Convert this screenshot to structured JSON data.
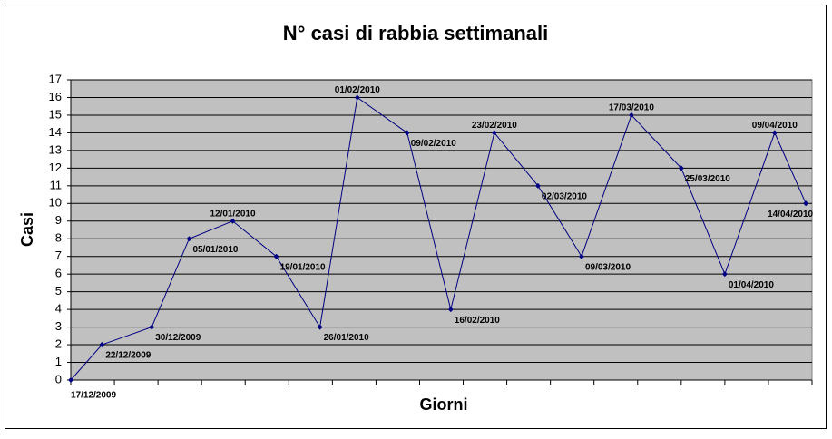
{
  "chart_data": {
    "type": "line",
    "title": "N° casi di rabbia settimanali",
    "x_label": "Giorni",
    "y_label": "Casi",
    "x": [
      "17/12/2009",
      "22/12/2009",
      "30/12/2009",
      "05/01/2010",
      "12/01/2010",
      "19/01/2010",
      "26/01/2010",
      "01/02/2010",
      "09/02/2010",
      "16/02/2010",
      "23/02/2010",
      "02/03/2010",
      "09/03/2010",
      "17/03/2010",
      "25/03/2010",
      "01/04/2010",
      "09/04/2010",
      "14/04/2010"
    ],
    "series": [
      {
        "name": "Casi",
        "color": "#000080",
        "values": [
          0,
          2,
          3,
          8,
          9,
          7,
          3,
          16,
          14,
          4,
          14,
          11,
          7,
          15,
          12,
          6,
          14,
          10
        ]
      }
    ],
    "xlim": [
      "17/12/2009",
      "15/04/2010"
    ],
    "xticks": [
      "17/12/2009"
    ],
    "xminor": [
      "24/12/2009",
      "31/12/2009",
      "07/01/2010",
      "14/01/2010",
      "21/01/2010",
      "28/01/2010",
      "04/02/2010",
      "11/02/2010",
      "18/02/2010",
      "25/02/2010",
      "04/03/2010",
      "11/03/2010",
      "18/03/2010",
      "25/03/2010",
      "01/04/2010",
      "08/04/2010",
      "15/04/2010"
    ],
    "ylim": [
      0,
      17
    ],
    "yticks": [
      0,
      1,
      2,
      3,
      4,
      5,
      6,
      7,
      8,
      9,
      10,
      11,
      12,
      13,
      14,
      15,
      16,
      17
    ],
    "grid": true
  }
}
